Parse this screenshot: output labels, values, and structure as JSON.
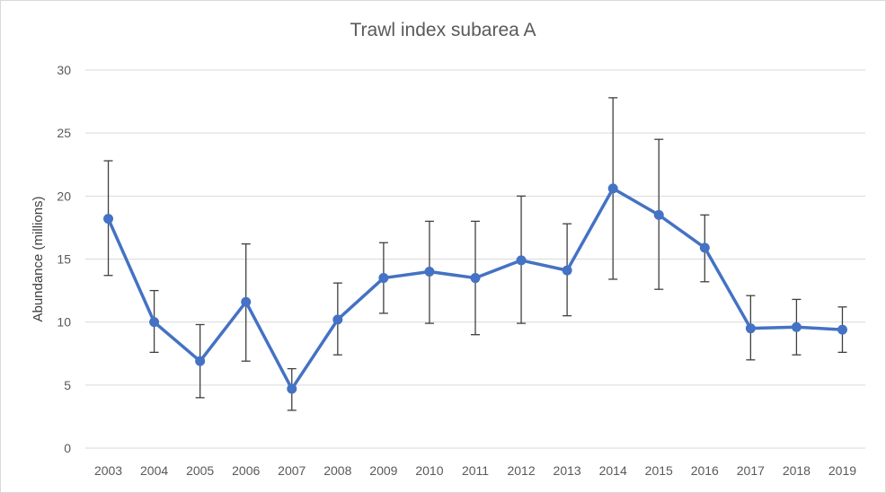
{
  "chart_data": {
    "type": "line",
    "title": "Trawl index subarea A",
    "xlabel": "",
    "ylabel": "Abundance (millions)",
    "ylim": [
      0,
      30
    ],
    "yticks": [
      "0",
      "5",
      "10",
      "15",
      "20",
      "25",
      "30"
    ],
    "grid": true,
    "legend": "none",
    "categories": [
      "2003",
      "2004",
      "2005",
      "2006",
      "2007",
      "2008",
      "2009",
      "2010",
      "2011",
      "2012",
      "2013",
      "2014",
      "2015",
      "2016",
      "2017",
      "2018",
      "2019"
    ],
    "series": [
      {
        "values": [
          18.2,
          10.0,
          6.9,
          11.6,
          4.7,
          10.2,
          13.5,
          14.0,
          13.5,
          14.9,
          14.1,
          20.6,
          18.5,
          15.9,
          9.5,
          9.6,
          9.4
        ],
        "error_low": [
          13.7,
          7.6,
          4.0,
          6.9,
          3.0,
          7.4,
          10.7,
          9.9,
          9.0,
          9.9,
          10.5,
          13.4,
          12.6,
          13.2,
          7.0,
          7.4,
          7.6
        ],
        "error_high": [
          22.8,
          12.5,
          9.8,
          16.2,
          6.3,
          13.1,
          16.3,
          18.0,
          18.0,
          20.0,
          17.8,
          27.8,
          24.5,
          18.5,
          12.1,
          11.8,
          11.2
        ]
      }
    ],
    "colors": {
      "line": "#4472c4",
      "error_bar": "#404040",
      "grid": "#d9d9d9"
    }
  }
}
